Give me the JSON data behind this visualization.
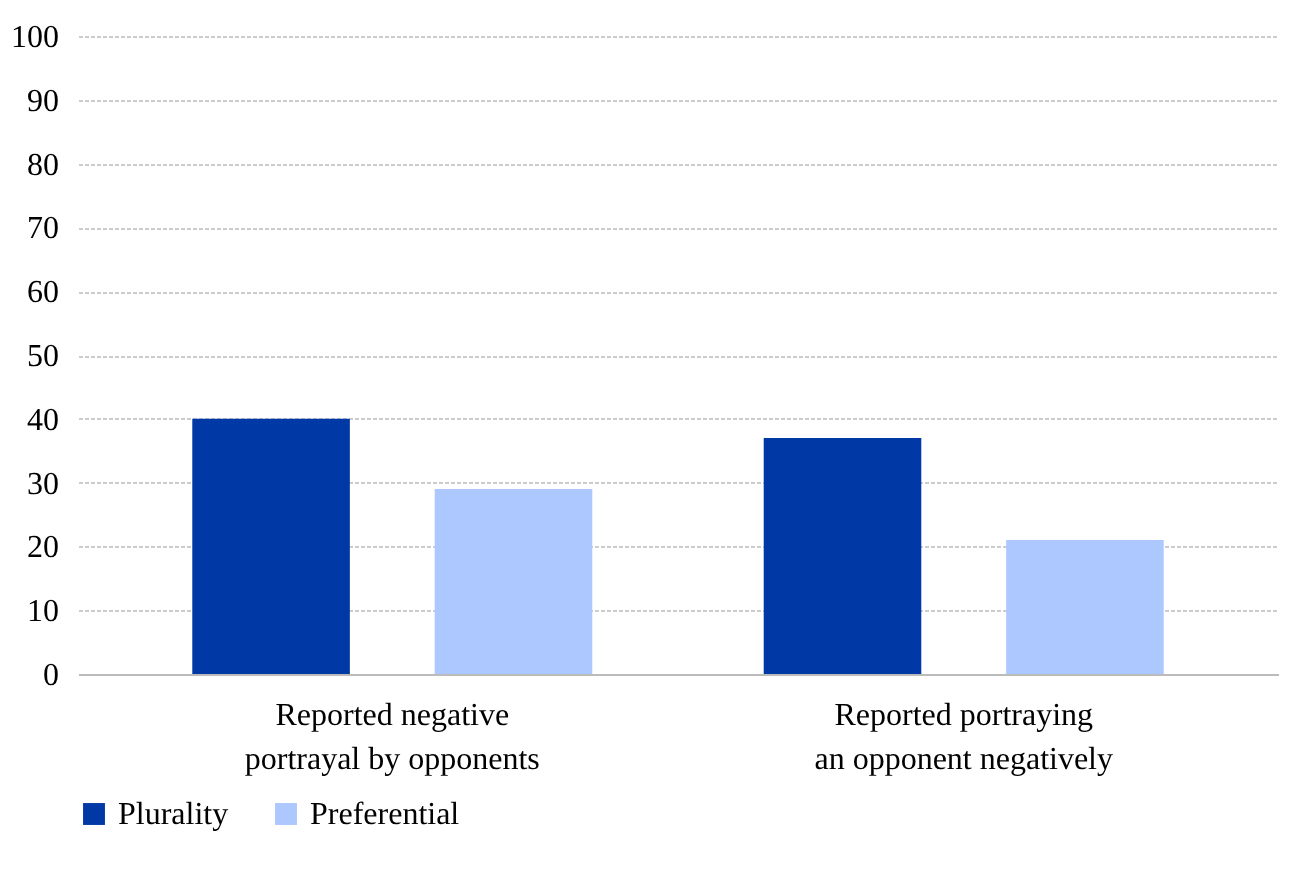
{
  "chart_data": {
    "type": "bar",
    "categories": [
      "Reported negative\nportrayal by opponents",
      "Reported portraying\nan opponent negatively"
    ],
    "series": [
      {
        "name": "Plurality",
        "color": "#0039a6",
        "values": [
          40,
          37
        ]
      },
      {
        "name": "Preferential",
        "color": "#adc8ff",
        "values": [
          29,
          21
        ]
      }
    ],
    "ylim": [
      0,
      100
    ],
    "yticks": [
      0,
      10,
      20,
      30,
      40,
      50,
      60,
      70,
      80,
      90,
      100
    ],
    "grid": "y",
    "legend": "bottom"
  }
}
